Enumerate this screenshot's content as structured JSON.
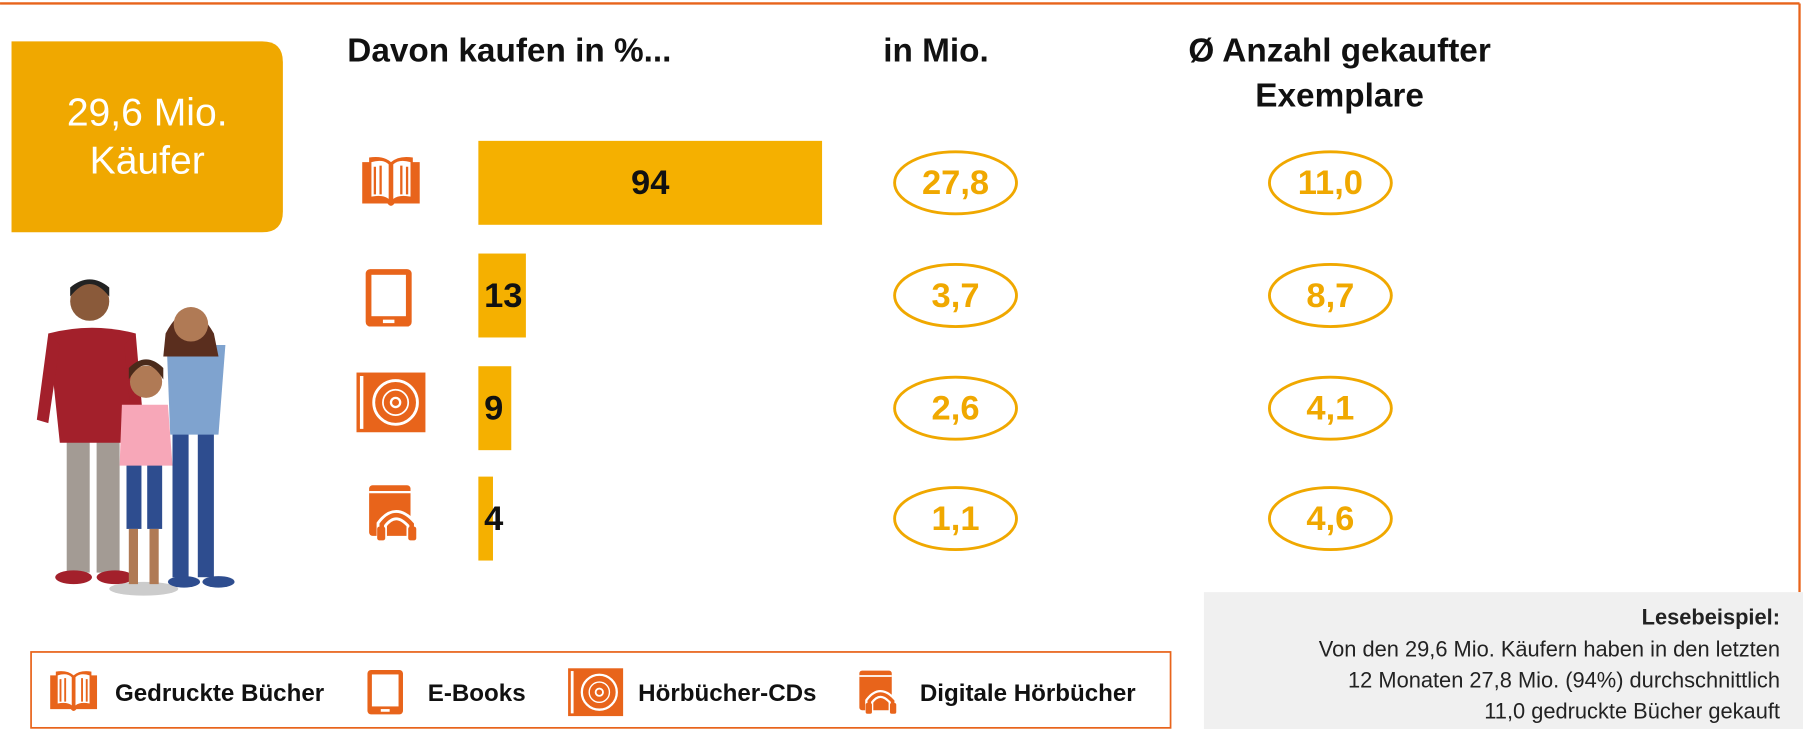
{
  "chart_data": {
    "type": "bar",
    "title": "Davon kaufen in %...",
    "categories": [
      "Gedruckte Bücher",
      "E-Books",
      "Hörbücher-CDs",
      "Digitale Hörbücher"
    ],
    "values": [
      94,
      13,
      9,
      4
    ],
    "color": "#f5b000",
    "total": {
      "lines": [
        "29,6 Mio.",
        "Käufer"
      ]
    },
    "buyers": {
      "title": "in Mio.",
      "values": [
        27.8,
        3.7,
        2.6,
        1.1
      ],
      "value_labels": [
        "27,8",
        "3,7",
        "2,6",
        "1,1"
      ]
    },
    "copies": {
      "title": [
        "Ø Anzahl gekaufter",
        "Exemplare"
      ],
      "values": [
        11.0,
        8.7,
        4.1,
        4.6
      ],
      "value_labels": [
        "11,0",
        "8,7",
        "4,1",
        "4,6"
      ]
    },
    "note": {
      "title": "Lesebeispiel:",
      "lines": [
        "Von den 29,6 Mio. Käufern haben in den letzten",
        "12 Monaten 27,8 Mio. (94%) durchschnittlich",
        "11,0 gedruckte Bücher gekauft"
      ]
    }
  }
}
